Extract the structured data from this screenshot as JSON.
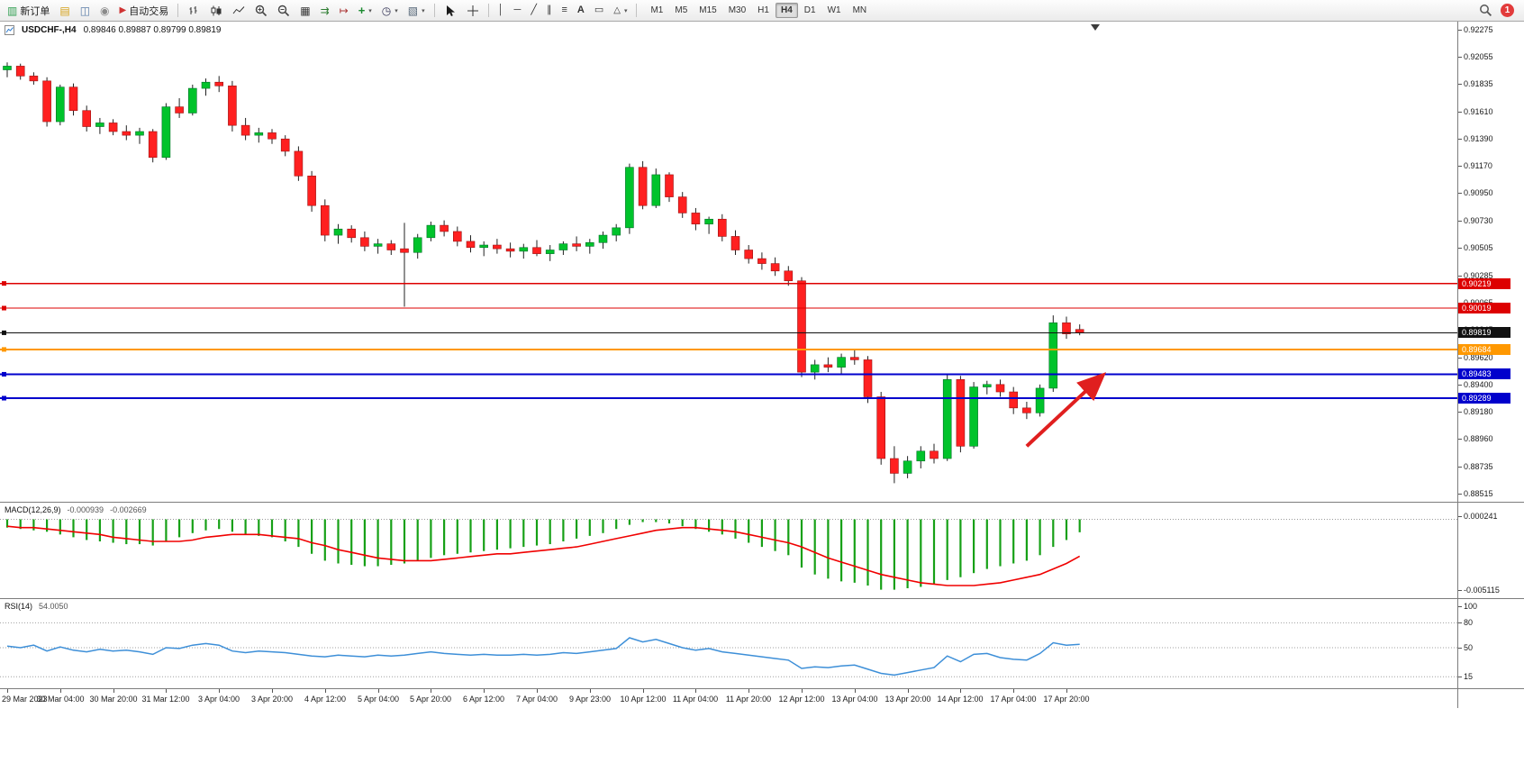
{
  "toolbar": {
    "buttons": {
      "new_order": "新订单",
      "auto_trading": "自动交易"
    },
    "icons": {
      "new_order": "▥",
      "profiles": "▤",
      "market_watch": "◫",
      "community": "◉",
      "auto_trading": "▶",
      "tile_windows": "▦",
      "auto_scroll": "⇉",
      "chart_shift": "↦",
      "indicators": "+",
      "period": "◷",
      "template": "▧",
      "vertical_line": "│",
      "horizontal_line": "─",
      "trendline": "╱",
      "channel": "∥",
      "fibonacci": "≡",
      "text": "A",
      "label": "▭",
      "shapes": "△",
      "caret": "▾"
    },
    "timeframes": [
      "M1",
      "M5",
      "M15",
      "M30",
      "H1",
      "H4",
      "D1",
      "W1",
      "MN"
    ],
    "active_timeframe": "H4",
    "notification_count": "1"
  },
  "chart": {
    "symbol_period": "USDCHF-,H4",
    "ohlc_text": "0.89846 0.89887 0.89799 0.89819"
  },
  "chart_data": {
    "type": "candlestick",
    "symbol": "USDCHF",
    "timeframe": "H4",
    "price_axis": {
      "labels": [
        "0.92275",
        "0.92055",
        "0.91835",
        "0.91610",
        "0.91390",
        "0.91170",
        "0.90950",
        "0.90730",
        "0.90505",
        "0.90285",
        "0.90065",
        "0.89845",
        "0.89620",
        "0.89400",
        "0.89180",
        "0.88960",
        "0.88735",
        "0.88515"
      ],
      "max": 0.92275,
      "min": 0.88515
    },
    "time_labels": [
      "29 Mar 2023",
      "30 Mar 04:00",
      "30 Mar 20:00",
      "31 Mar 12:00",
      "3 Apr 04:00",
      "3 Apr 20:00",
      "4 Apr 12:00",
      "5 Apr 04:00",
      "5 Apr 20:00",
      "6 Apr 12:00",
      "7 Apr 04:00",
      "9 Apr 23:00",
      "10 Apr 12:00",
      "11 Apr 04:00",
      "11 Apr 20:00",
      "12 Apr 12:00",
      "13 Apr 04:00",
      "13 Apr 20:00",
      "14 Apr 12:00",
      "17 Apr 04:00",
      "17 Apr 20:00"
    ],
    "candles": [
      [
        0.9195,
        0.9201,
        0.9189,
        0.9198
      ],
      [
        0.9198,
        0.92,
        0.9187,
        0.919
      ],
      [
        0.919,
        0.9193,
        0.9183,
        0.9186
      ],
      [
        0.9186,
        0.9189,
        0.9149,
        0.9153
      ],
      [
        0.9153,
        0.9183,
        0.915,
        0.9181
      ],
      [
        0.9181,
        0.9184,
        0.9158,
        0.9162
      ],
      [
        0.9162,
        0.9166,
        0.9145,
        0.9149
      ],
      [
        0.9149,
        0.9156,
        0.9143,
        0.9152
      ],
      [
        0.9152,
        0.9155,
        0.9142,
        0.9145
      ],
      [
        0.9145,
        0.915,
        0.9138,
        0.9142
      ],
      [
        0.9142,
        0.9148,
        0.9135,
        0.9145
      ],
      [
        0.9145,
        0.9147,
        0.912,
        0.9124
      ],
      [
        0.9124,
        0.9168,
        0.9122,
        0.9165
      ],
      [
        0.9165,
        0.9172,
        0.9156,
        0.916
      ],
      [
        0.916,
        0.9183,
        0.9158,
        0.918
      ],
      [
        0.918,
        0.9188,
        0.9174,
        0.9185
      ],
      [
        0.9185,
        0.919,
        0.9177,
        0.9182
      ],
      [
        0.9182,
        0.9186,
        0.9145,
        0.915
      ],
      [
        0.915,
        0.9156,
        0.9138,
        0.9142
      ],
      [
        0.9142,
        0.9148,
        0.9136,
        0.9144
      ],
      [
        0.9144,
        0.9147,
        0.9135,
        0.9139
      ],
      [
        0.9139,
        0.9142,
        0.9125,
        0.9129
      ],
      [
        0.9129,
        0.9133,
        0.9105,
        0.9109
      ],
      [
        0.9109,
        0.9113,
        0.908,
        0.9085
      ],
      [
        0.9085,
        0.909,
        0.9056,
        0.9061
      ],
      [
        0.9061,
        0.907,
        0.9054,
        0.9066
      ],
      [
        0.9066,
        0.9069,
        0.9055,
        0.9059
      ],
      [
        0.9059,
        0.9064,
        0.9048,
        0.9052
      ],
      [
        0.9052,
        0.9058,
        0.9046,
        0.9054
      ],
      [
        0.9054,
        0.9057,
        0.9045,
        0.9049
      ],
      [
        0.905,
        0.9071,
        0.9003,
        0.9047
      ],
      [
        0.9047,
        0.9062,
        0.9042,
        0.9059
      ],
      [
        0.9059,
        0.9072,
        0.9056,
        0.9069
      ],
      [
        0.9069,
        0.9073,
        0.906,
        0.9064
      ],
      [
        0.9064,
        0.9068,
        0.9052,
        0.9056
      ],
      [
        0.9056,
        0.9061,
        0.9047,
        0.9051
      ],
      [
        0.9051,
        0.9056,
        0.9044,
        0.9053
      ],
      [
        0.9053,
        0.9058,
        0.9046,
        0.905
      ],
      [
        0.905,
        0.9055,
        0.9043,
        0.9048
      ],
      [
        0.9048,
        0.9054,
        0.9042,
        0.9051
      ],
      [
        0.9051,
        0.9057,
        0.9044,
        0.9046
      ],
      [
        0.9046,
        0.9053,
        0.904,
        0.9049
      ],
      [
        0.9049,
        0.9056,
        0.9045,
        0.9054
      ],
      [
        0.9054,
        0.906,
        0.9048,
        0.9052
      ],
      [
        0.9052,
        0.9058,
        0.9046,
        0.9055
      ],
      [
        0.9055,
        0.9064,
        0.905,
        0.9061
      ],
      [
        0.9061,
        0.907,
        0.9056,
        0.9067
      ],
      [
        0.9067,
        0.9119,
        0.9062,
        0.9116
      ],
      [
        0.9116,
        0.9121,
        0.9082,
        0.9085
      ],
      [
        0.9085,
        0.9115,
        0.9083,
        0.911
      ],
      [
        0.911,
        0.9112,
        0.9088,
        0.9092
      ],
      [
        0.9092,
        0.9096,
        0.9075,
        0.9079
      ],
      [
        0.9079,
        0.9083,
        0.9065,
        0.907
      ],
      [
        0.907,
        0.9076,
        0.9062,
        0.9074
      ],
      [
        0.9074,
        0.9078,
        0.9056,
        0.906
      ],
      [
        0.906,
        0.9065,
        0.9045,
        0.9049
      ],
      [
        0.9049,
        0.9053,
        0.9038,
        0.9042
      ],
      [
        0.9042,
        0.9047,
        0.9033,
        0.9038
      ],
      [
        0.9038,
        0.9043,
        0.9028,
        0.9032
      ],
      [
        0.9032,
        0.9036,
        0.902,
        0.9024
      ],
      [
        0.9024,
        0.9027,
        0.8946,
        0.895
      ],
      [
        0.895,
        0.896,
        0.8944,
        0.8956
      ],
      [
        0.8956,
        0.8962,
        0.895,
        0.8954
      ],
      [
        0.8954,
        0.8965,
        0.8948,
        0.8962
      ],
      [
        0.8962,
        0.8968,
        0.8956,
        0.896
      ],
      [
        0.896,
        0.8963,
        0.8925,
        0.893
      ],
      [
        0.893,
        0.8934,
        0.8875,
        0.888
      ],
      [
        0.888,
        0.889,
        0.886,
        0.8868
      ],
      [
        0.8868,
        0.8882,
        0.8864,
        0.8878
      ],
      [
        0.8878,
        0.889,
        0.8872,
        0.8886
      ],
      [
        0.8886,
        0.8892,
        0.8876,
        0.888
      ],
      [
        0.888,
        0.8948,
        0.8878,
        0.8944
      ],
      [
        0.8944,
        0.8947,
        0.8885,
        0.889
      ],
      [
        0.889,
        0.8942,
        0.8888,
        0.8938
      ],
      [
        0.8938,
        0.8943,
        0.8932,
        0.894
      ],
      [
        0.894,
        0.8944,
        0.893,
        0.8934
      ],
      [
        0.8934,
        0.8938,
        0.8916,
        0.8921
      ],
      [
        0.8921,
        0.8926,
        0.8912,
        0.8917
      ],
      [
        0.8917,
        0.894,
        0.8914,
        0.8937
      ],
      [
        0.8937,
        0.8996,
        0.8934,
        0.899
      ],
      [
        0.899,
        0.8995,
        0.8977,
        0.8981
      ],
      [
        0.89846,
        0.89887,
        0.89799,
        0.89819
      ]
    ],
    "objects": {
      "hlines": [
        {
          "price": 0.90219,
          "tag": "0.90219",
          "color": "#dd0000",
          "width": 1.3
        },
        {
          "price": 0.90019,
          "tag": "0.90019",
          "color": "#dd0000",
          "width": 1.3
        },
        {
          "price": 0.89819,
          "tag": "0.89819",
          "color": "#111111",
          "width": 1
        },
        {
          "price": 0.89684,
          "tag": "0.89684",
          "color": "#ff9800",
          "width": 2
        },
        {
          "price": 0.89483,
          "tag": "0.89483",
          "color": "#0000cc",
          "width": 2
        },
        {
          "price": 0.89289,
          "tag": "0.89289",
          "color": "#0000cc",
          "width": 2
        }
      ],
      "arrow": {
        "from_candle": 77,
        "from_price": 0.889,
        "to_candle": 82.6,
        "to_price": 0.8946,
        "color": "#e01f1f"
      }
    },
    "indicators": {
      "macd": {
        "label": "MACD(12,26,9)",
        "value_main": "-0.000939",
        "value_signal": "-0.002669",
        "axis_labels": [
          "0.000241",
          "-0.005115"
        ],
        "axis_values": [
          0.000241,
          -0.005115
        ],
        "histogram": [
          -0.0006,
          -0.0007,
          -0.0008,
          -0.0009,
          -0.0011,
          -0.0013,
          -0.0015,
          -0.0016,
          -0.0017,
          -0.0018,
          -0.0018,
          -0.0019,
          -0.0016,
          -0.0013,
          -0.001,
          -0.0008,
          -0.0007,
          -0.0009,
          -0.0011,
          -0.0012,
          -0.0013,
          -0.0016,
          -0.002,
          -0.0025,
          -0.003,
          -0.0032,
          -0.0033,
          -0.0034,
          -0.0034,
          -0.0033,
          -0.0032,
          -0.003,
          -0.0028,
          -0.0026,
          -0.0025,
          -0.0024,
          -0.0023,
          -0.0022,
          -0.0021,
          -0.002,
          -0.0019,
          -0.0018,
          -0.0016,
          -0.0014,
          -0.0012,
          -0.001,
          -0.0007,
          -0.0004,
          -0.0002,
          -0.0002,
          -0.0003,
          -0.0005,
          -0.0007,
          -0.0009,
          -0.0011,
          -0.0014,
          -0.0017,
          -0.002,
          -0.0023,
          -0.0026,
          -0.0035,
          -0.004,
          -0.0043,
          -0.0045,
          -0.0046,
          -0.0048,
          -0.0051,
          -0.0051,
          -0.005,
          -0.0049,
          -0.0047,
          -0.0044,
          -0.0042,
          -0.0039,
          -0.0036,
          -0.0034,
          -0.0032,
          -0.003,
          -0.0026,
          -0.002,
          -0.0015,
          -0.000939
        ],
        "signal": [
          -0.0005,
          -0.0006,
          -0.0006,
          -0.0007,
          -0.0008,
          -0.0009,
          -0.001,
          -0.0011,
          -0.0013,
          -0.0014,
          -0.0015,
          -0.0016,
          -0.0016,
          -0.0016,
          -0.0015,
          -0.0013,
          -0.0012,
          -0.0011,
          -0.0011,
          -0.0011,
          -0.0012,
          -0.0013,
          -0.0014,
          -0.0017,
          -0.0019,
          -0.0022,
          -0.0024,
          -0.0026,
          -0.0028,
          -0.0029,
          -0.003,
          -0.003,
          -0.003,
          -0.0029,
          -0.0028,
          -0.0027,
          -0.0026,
          -0.0025,
          -0.0025,
          -0.0024,
          -0.0023,
          -0.0022,
          -0.0021,
          -0.002,
          -0.0018,
          -0.0016,
          -0.0014,
          -0.0012,
          -0.001,
          -0.0008,
          -0.0007,
          -0.0006,
          -0.0006,
          -0.0007,
          -0.0008,
          -0.0009,
          -0.0011,
          -0.0013,
          -0.0015,
          -0.0017,
          -0.002,
          -0.0024,
          -0.0028,
          -0.0031,
          -0.0034,
          -0.0037,
          -0.004,
          -0.0042,
          -0.0044,
          -0.0046,
          -0.0047,
          -0.0048,
          -0.0048,
          -0.0048,
          -0.0047,
          -0.0046,
          -0.0044,
          -0.0042,
          -0.004,
          -0.0036,
          -0.0032,
          -0.002669
        ]
      },
      "rsi": {
        "label": "RSI(14)",
        "value": "54.0050",
        "axis_labels": [
          "100",
          "80",
          "50",
          "15"
        ],
        "levels": [
          80,
          50,
          15
        ],
        "values": [
          52,
          50,
          53,
          46,
          51,
          47,
          45,
          48,
          46,
          47,
          45,
          42,
          50,
          49,
          53,
          55,
          53,
          46,
          44,
          46,
          45,
          44,
          42,
          40,
          39,
          41,
          40,
          39,
          41,
          40,
          41,
          43,
          45,
          43,
          42,
          41,
          42,
          41,
          41,
          42,
          41,
          42,
          44,
          43,
          45,
          47,
          49,
          62,
          57,
          60,
          55,
          50,
          47,
          49,
          45,
          43,
          41,
          39,
          37,
          35,
          25,
          27,
          26,
          28,
          29,
          24,
          19,
          17,
          20,
          23,
          26,
          40,
          33,
          42,
          43,
          38,
          36,
          35,
          43,
          56,
          53,
          54
        ]
      }
    }
  }
}
